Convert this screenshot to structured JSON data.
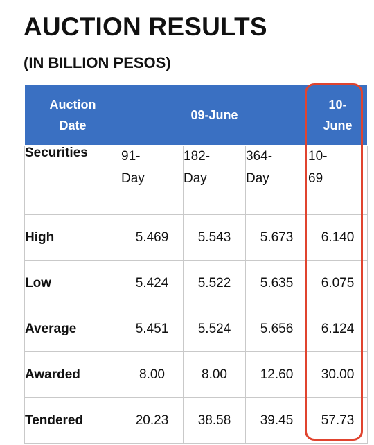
{
  "title": "AUCTION RESULTS",
  "subtitle": "(IN BILLION PESOS)",
  "table": {
    "header": {
      "auction_date": "Auction Date",
      "group1": "09-June",
      "group2": "10-June"
    },
    "securities": {
      "label": "Securities",
      "values": [
        "91-Day",
        "182-Day",
        "364-Day",
        "10-69"
      ]
    },
    "rows": [
      {
        "label": "High",
        "values": [
          "5.469",
          "5.543",
          "5.673",
          "6.140"
        ]
      },
      {
        "label": "Low",
        "values": [
          "5.424",
          "5.522",
          "5.635",
          "6.075"
        ]
      },
      {
        "label": "Average",
        "values": [
          "5.451",
          "5.524",
          "5.656",
          "6.124"
        ]
      },
      {
        "label": "Awarded",
        "values": [
          "8.00",
          "8.00",
          "12.60",
          "30.00"
        ]
      },
      {
        "label": "Tendered",
        "values": [
          "20.23",
          "38.58",
          "39.45",
          "57.73"
        ]
      }
    ]
  },
  "colors": {
    "header_bg": "#3a70c2",
    "highlight": "#e0442f"
  }
}
